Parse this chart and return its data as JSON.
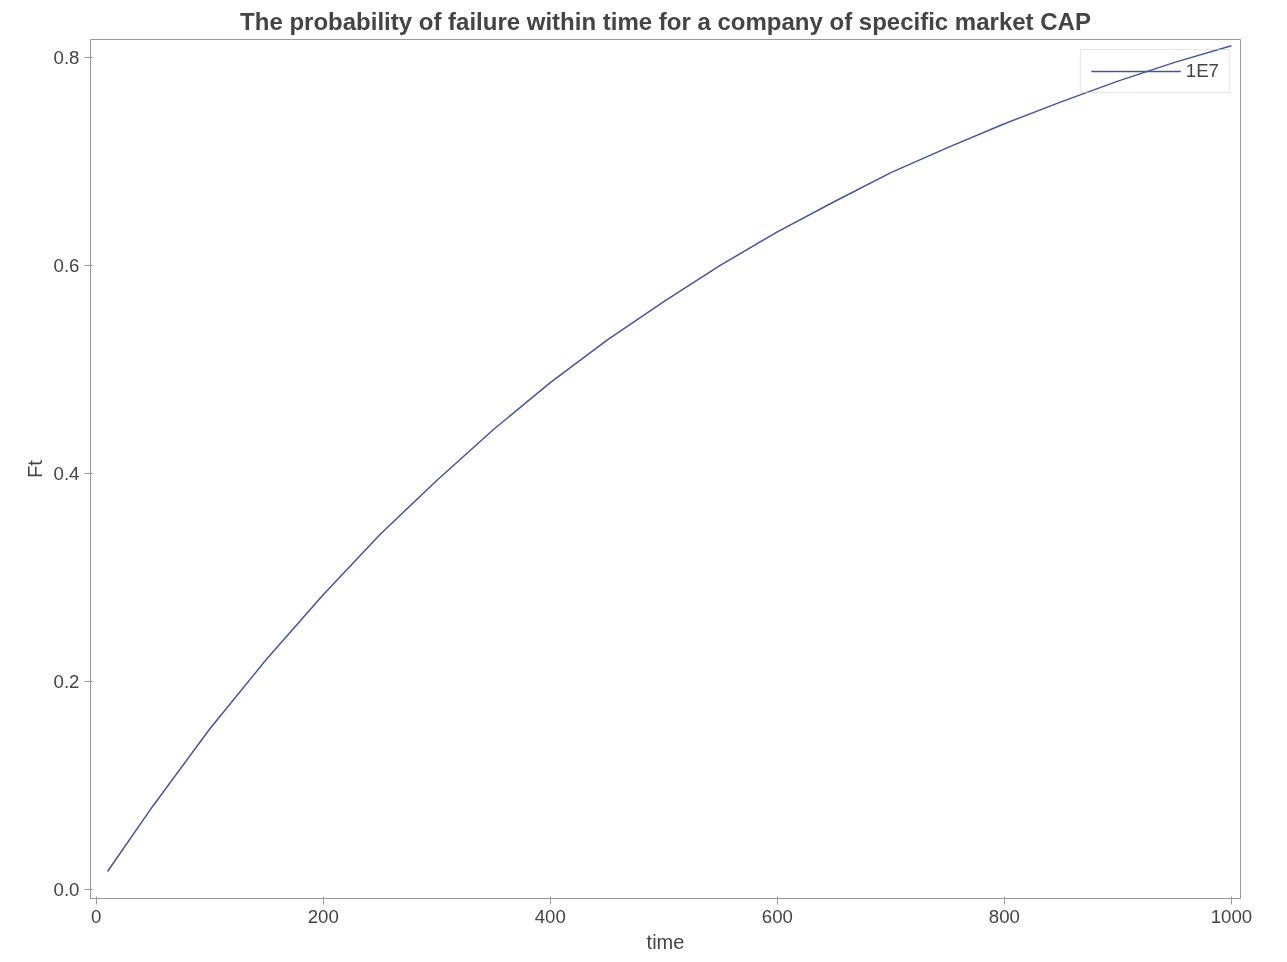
{
  "chart_data": {
    "type": "line",
    "title": "The probability of failure within time for a company of specific market CAP",
    "xlabel": "time",
    "ylabel": "Ft",
    "x": [
      10,
      50,
      100,
      150,
      200,
      250,
      300,
      350,
      400,
      450,
      500,
      550,
      600,
      650,
      700,
      750,
      800,
      850,
      900,
      950,
      1000
    ],
    "series": [
      {
        "name": "1E7",
        "color": "#445694",
        "values": [
          0.017,
          0.08,
          0.154,
          0.221,
          0.283,
          0.341,
          0.393,
          0.442,
          0.487,
          0.528,
          0.565,
          0.6,
          0.632,
          0.661,
          0.689,
          0.713,
          0.736,
          0.757,
          0.777,
          0.795,
          0.811
        ]
      }
    ],
    "xlim": [
      -5,
      1008
    ],
    "ylim": [
      -0.009,
      0.817
    ],
    "xticks": [
      0,
      200,
      400,
      600,
      800,
      1000
    ],
    "yticks": [
      {
        "value": 0,
        "label": "0.0"
      },
      {
        "value": 0.2,
        "label": "0.2"
      },
      {
        "value": 0.4,
        "label": "0.4"
      },
      {
        "value": 0.6,
        "label": "0.6"
      },
      {
        "value": 0.8,
        "label": "0.8"
      }
    ],
    "grid": false,
    "legend": "top right",
    "marker": "none",
    "line_style": "solid"
  }
}
